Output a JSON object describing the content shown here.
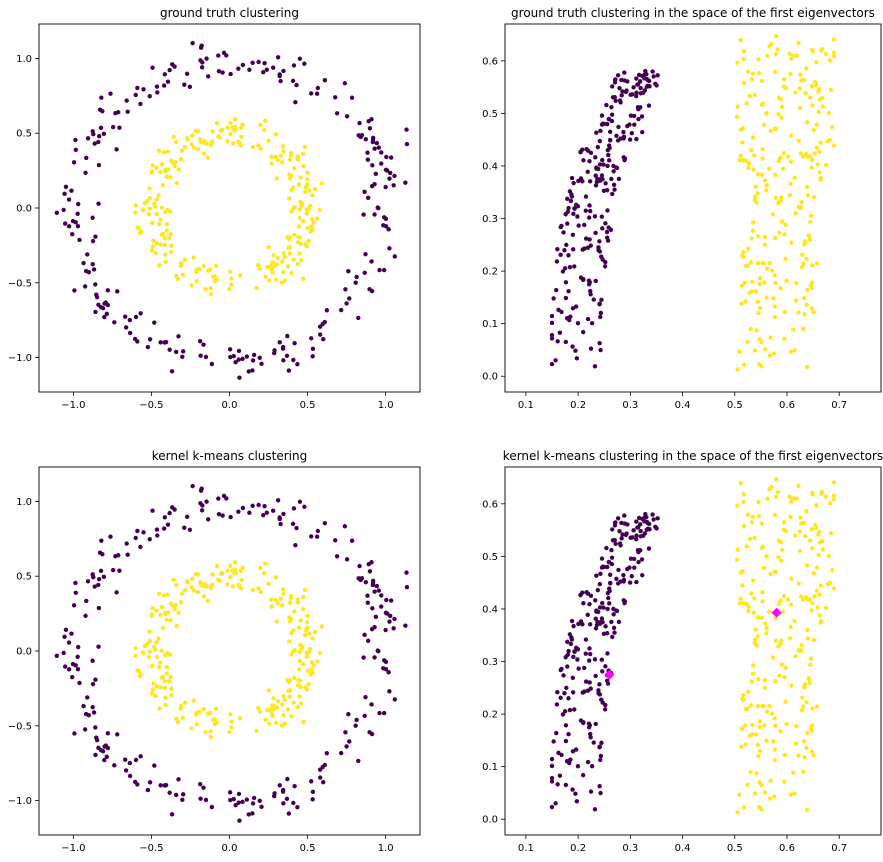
{
  "colors": {
    "class0": "#440154",
    "class1": "#fde725",
    "centroid": "#ff00ff"
  },
  "chart_data": [
    {
      "type": "scatter",
      "title": "ground truth clustering",
      "xlim": [
        -1.22,
        1.22
      ],
      "ylim": [
        -1.23,
        1.23
      ],
      "xticks": [
        -1.0,
        -0.5,
        0.0,
        0.5,
        1.0
      ],
      "yticks": [
        -1.0,
        -0.5,
        0.0,
        0.5,
        1.0
      ],
      "xtick_labels": [
        "−1.0",
        "−0.5",
        "0.0",
        "0.5",
        "1.0"
      ],
      "ytick_labels": [
        "−1.0",
        "−0.5",
        "0.0",
        "0.5",
        "1.0"
      ],
      "series": [
        {
          "color": "#440154",
          "n_points": 250,
          "shape": "ring",
          "radius_mean": 1.0,
          "radius_spread": 0.07
        },
        {
          "color": "#fde725",
          "n_points": 250,
          "shape": "ring",
          "radius_mean": 0.5,
          "radius_spread": 0.06
        }
      ]
    },
    {
      "type": "scatter",
      "title": "ground truth clustering in the space of the first eigenvectors",
      "xlim": [
        0.06,
        0.78
      ],
      "ylim": [
        -0.03,
        0.67
      ],
      "xticks": [
        0.1,
        0.2,
        0.3,
        0.4,
        0.5,
        0.6,
        0.7
      ],
      "yticks": [
        0.0,
        0.1,
        0.2,
        0.3,
        0.4,
        0.5,
        0.6
      ],
      "xtick_labels": [
        "0.1",
        "0.2",
        "0.3",
        "0.4",
        "0.5",
        "0.6",
        "0.7"
      ],
      "ytick_labels": [
        "0.0",
        "0.1",
        "0.2",
        "0.3",
        "0.4",
        "0.5",
        "0.6"
      ],
      "series": [
        {
          "color": "#440154",
          "n_points": 250,
          "shape": "arc",
          "x_range": [
            0.15,
            0.41
          ],
          "y_range": [
            0.0,
            0.59
          ]
        },
        {
          "color": "#fde725",
          "n_points": 250,
          "shape": "band",
          "x_range": [
            0.46,
            0.69
          ],
          "y_range": [
            0.0,
            0.65
          ]
        }
      ]
    },
    {
      "type": "scatter",
      "title": "kernel k-means clustering",
      "xlim": [
        -1.22,
        1.22
      ],
      "ylim": [
        -1.23,
        1.23
      ],
      "xticks": [
        -1.0,
        -0.5,
        0.0,
        0.5,
        1.0
      ],
      "yticks": [
        -1.0,
        -0.5,
        0.0,
        0.5,
        1.0
      ],
      "xtick_labels": [
        "−1.0",
        "−0.5",
        "0.0",
        "0.5",
        "1.0"
      ],
      "ytick_labels": [
        "−1.0",
        "−0.5",
        "0.0",
        "0.5",
        "1.0"
      ],
      "series": [
        {
          "color": "#440154",
          "n_points": 250,
          "shape": "ring",
          "radius_mean": 1.0,
          "radius_spread": 0.07
        },
        {
          "color": "#fde725",
          "n_points": 250,
          "shape": "ring",
          "radius_mean": 0.5,
          "radius_spread": 0.06
        }
      ]
    },
    {
      "type": "scatter",
      "title": "kernel k-means clustering in the space of the first eigenvectors",
      "xlim": [
        0.06,
        0.78
      ],
      "ylim": [
        -0.03,
        0.67
      ],
      "xticks": [
        0.1,
        0.2,
        0.3,
        0.4,
        0.5,
        0.6,
        0.7
      ],
      "yticks": [
        0.0,
        0.1,
        0.2,
        0.3,
        0.4,
        0.5,
        0.6
      ],
      "xtick_labels": [
        "0.1",
        "0.2",
        "0.3",
        "0.4",
        "0.5",
        "0.6",
        "0.7"
      ],
      "ytick_labels": [
        "0.0",
        "0.1",
        "0.2",
        "0.3",
        "0.4",
        "0.5",
        "0.6"
      ],
      "series": [
        {
          "color": "#440154",
          "n_points": 250,
          "shape": "arc",
          "x_range": [
            0.15,
            0.41
          ],
          "y_range": [
            0.0,
            0.59
          ]
        },
        {
          "color": "#fde725",
          "n_points": 250,
          "shape": "band",
          "x_range": [
            0.46,
            0.69
          ],
          "y_range": [
            0.0,
            0.65
          ]
        }
      ],
      "centroids": [
        {
          "x": 0.26,
          "y": 0.275,
          "color": "#ff00ff",
          "marker": "diamond"
        },
        {
          "x": 0.58,
          "y": 0.393,
          "color": "#ff00ff",
          "marker": "diamond"
        }
      ]
    }
  ]
}
